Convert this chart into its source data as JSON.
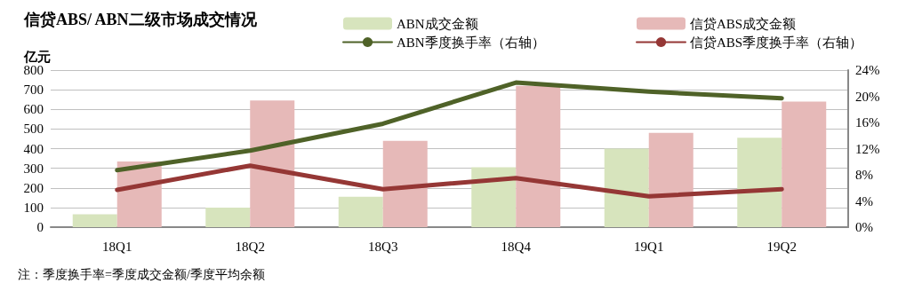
{
  "chart_data": {
    "type": "bar",
    "title": "信贷ABS/ ABN二级市场成交情况",
    "ylabel": "亿元",
    "categories": [
      "18Q1",
      "18Q2",
      "18Q3",
      "18Q4",
      "19Q1",
      "19Q2"
    ],
    "series": [
      {
        "name": "ABN成交金额",
        "color": "#d7e4bd",
        "values": [
          65,
          100,
          155,
          305,
          400,
          455
        ]
      },
      {
        "name": "信贷ABS成交金额",
        "color": "#e6b9b8",
        "values": [
          335,
          645,
          440,
          720,
          480,
          640
        ]
      },
      {
        "name": "ABN季度换手率（右轴）",
        "type": "line",
        "axis": "y2",
        "color": "#4f6228",
        "values": [
          8.7,
          11.7,
          15.8,
          22.1,
          20.7,
          19.7
        ]
      },
      {
        "name": "信贷ABS季度换手率（右轴）",
        "type": "line",
        "axis": "y2",
        "color": "#953735",
        "values": [
          5.7,
          9.4,
          5.8,
          7.5,
          4.7,
          5.8
        ]
      }
    ],
    "ylim": [
      0,
      800
    ],
    "yticks": [
      0,
      100,
      200,
      300,
      400,
      500,
      600,
      700,
      800
    ],
    "y2lim": [
      0,
      24
    ],
    "y2ticks": [
      {
        "value": 0,
        "label": "0%"
      },
      {
        "value": 4,
        "label": "4%"
      },
      {
        "value": 8,
        "label": "8%"
      },
      {
        "value": 12,
        "label": "12%"
      },
      {
        "value": 16,
        "label": "16%"
      },
      {
        "value": 20,
        "label": "20%"
      },
      {
        "value": 24,
        "label": "24%"
      }
    ],
    "grid": "y",
    "legend": "top",
    "marker": "none",
    "line_style": "solid",
    "annotations": [
      "注：季度换手率=季度成交金额/季度平均余额"
    ]
  }
}
